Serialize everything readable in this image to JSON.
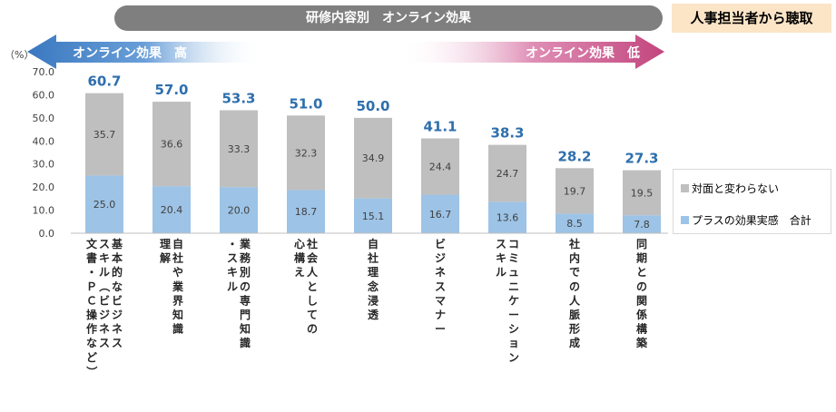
{
  "header": {
    "title": "研修内容別　オンライン効果",
    "source": "人事担当者から聴取"
  },
  "banner": {
    "high_label": "オンライン効果　高",
    "low_label": "オンライン効果　低",
    "high_color": "#3f7fc8",
    "low_color": "#c2457e"
  },
  "chart_data": {
    "type": "bar",
    "stacked": true,
    "ylabel": "（%）",
    "ylim": [
      0,
      70
    ],
    "yticks": [
      "0.0",
      "10.0",
      "20.0",
      "30.0",
      "40.0",
      "50.0",
      "60.0",
      "70.0"
    ],
    "categories": [
      "基本的なビジネススキル（ビジネス文書・ＰＣ操作など）",
      "自社や業界知識理解",
      "業務別の専門知識・スキル",
      "社会人としての心構え",
      "自社理念浸透",
      "ビジネスマナー",
      "コミュニケーションスキル",
      "社内での人脈形成",
      "同期との関係構築"
    ],
    "category_columns": [
      [
        "基本的なビジネス",
        "スキル（ビジネス",
        "文書・ＰＣ操作など）"
      ],
      [
        "自社や業界知識",
        "理解"
      ],
      [
        "業務別の専門知識",
        "・スキル"
      ],
      [
        "社会人としての",
        "心構え"
      ],
      [
        "自社理念浸透"
      ],
      [
        "ビジネスマナー"
      ],
      [
        "コミュニケーション",
        "スキル"
      ],
      [
        "社内での人脈形成"
      ],
      [
        "同期との関係構築"
      ]
    ],
    "series": [
      {
        "name": "プラスの効果実感",
        "color": "#9dc3e6",
        "values": [
          25.0,
          20.4,
          20.0,
          18.7,
          15.1,
          16.7,
          13.6,
          8.5,
          7.8
        ]
      },
      {
        "name": "対面と変わらない",
        "color": "#bfbfbf",
        "values": [
          35.7,
          36.6,
          33.3,
          32.3,
          34.9,
          24.4,
          24.7,
          19.7,
          19.5
        ]
      }
    ],
    "totals": [
      60.7,
      57.0,
      53.3,
      51.0,
      50.0,
      41.1,
      38.3,
      28.2,
      27.3
    ],
    "totals_label": "合計",
    "total_color": "#2e6fad",
    "grid": false,
    "legend_position": "right"
  }
}
